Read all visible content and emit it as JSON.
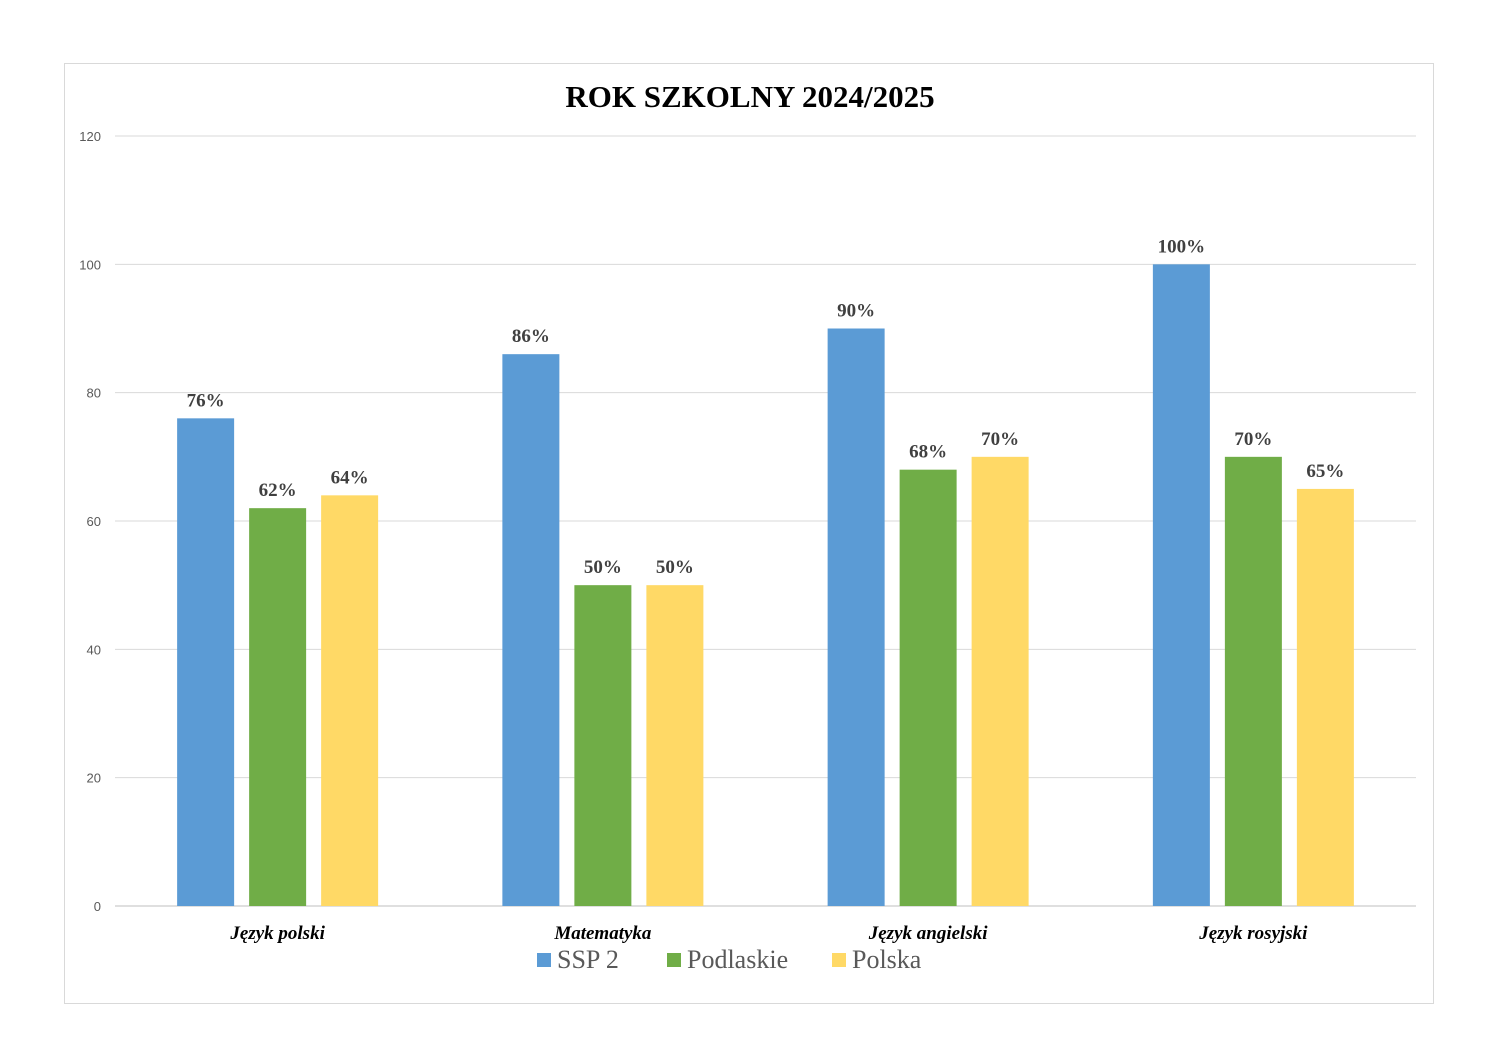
{
  "chart_data": {
    "type": "bar",
    "title": "ROK SZKOLNY 2024/2025",
    "xlabel": "",
    "ylabel": "",
    "ylim": [
      0,
      120
    ],
    "yticks": [
      0,
      20,
      40,
      60,
      80,
      100,
      120
    ],
    "grid": true,
    "legend_position": "bottom",
    "categories": [
      "Język polski",
      "Matematyka",
      "Język angielski",
      "Język rosyjski"
    ],
    "series": [
      {
        "name": "SSP 2",
        "color": "#5b9bd5",
        "values": [
          76,
          86,
          90,
          100
        ],
        "labels": [
          "76%",
          "86%",
          "90%",
          "100%"
        ]
      },
      {
        "name": "Podlaskie",
        "color": "#70ad47",
        "values": [
          62,
          50,
          68,
          70
        ],
        "labels": [
          "62%",
          "50%",
          "68%",
          "70%"
        ]
      },
      {
        "name": "Polska",
        "color": "#ffd966",
        "values": [
          64,
          50,
          70,
          65
        ],
        "labels": [
          "64%",
          "50%",
          "70%",
          "65%"
        ]
      }
    ]
  }
}
